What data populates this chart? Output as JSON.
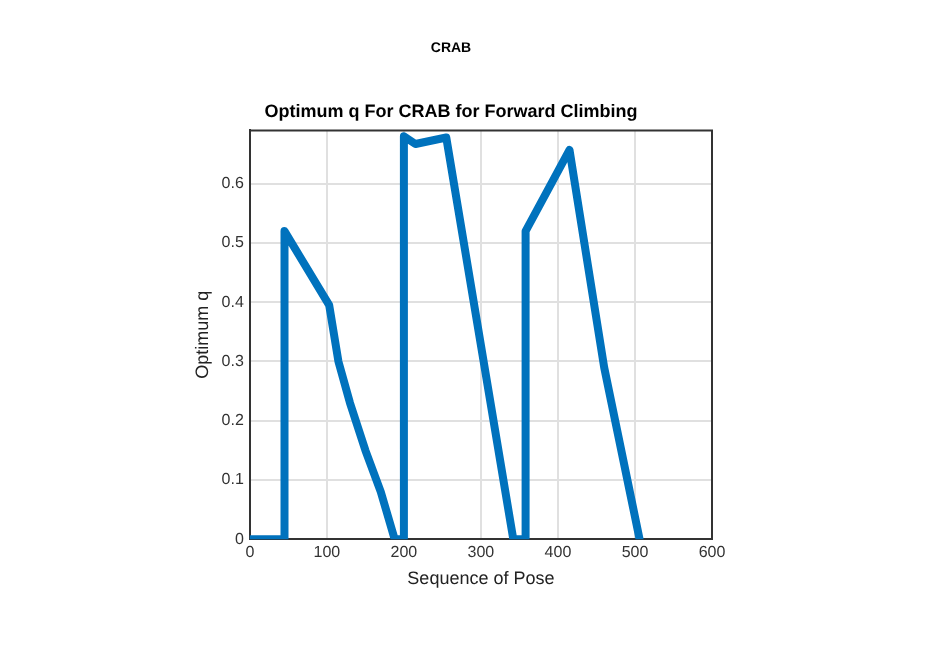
{
  "chart_data": {
    "type": "line",
    "title": "CRAB",
    "subtitle": "Optimum q For CRAB for Forward Climbing",
    "xlabel": "Sequence of Pose",
    "ylabel": "Optimum q",
    "series": [
      {
        "color": "#0072bd",
        "x": [
          0,
          45,
          45,
          103,
          115,
          130,
          150,
          170,
          188,
          200,
          200,
          215,
          255,
          342,
          358,
          358,
          415,
          460,
          506
        ],
        "values": [
          0,
          0,
          0.52,
          0.395,
          0.3,
          0.23,
          0.15,
          0.08,
          0,
          0,
          0.68,
          0.667,
          0.678,
          0,
          0,
          0.52,
          0.657,
          0.29,
          0
        ]
      }
    ],
    "xlim": [
      0,
      600
    ],
    "xticks": [
      0,
      100,
      200,
      300,
      400,
      500,
      600
    ],
    "ylim": [
      0,
      0.69
    ],
    "yticks": [
      0,
      0.1,
      0.2,
      0.3,
      0.4,
      0.5,
      0.6
    ],
    "grid": true,
    "legend": false,
    "marker": "none",
    "line_style": "solid"
  }
}
